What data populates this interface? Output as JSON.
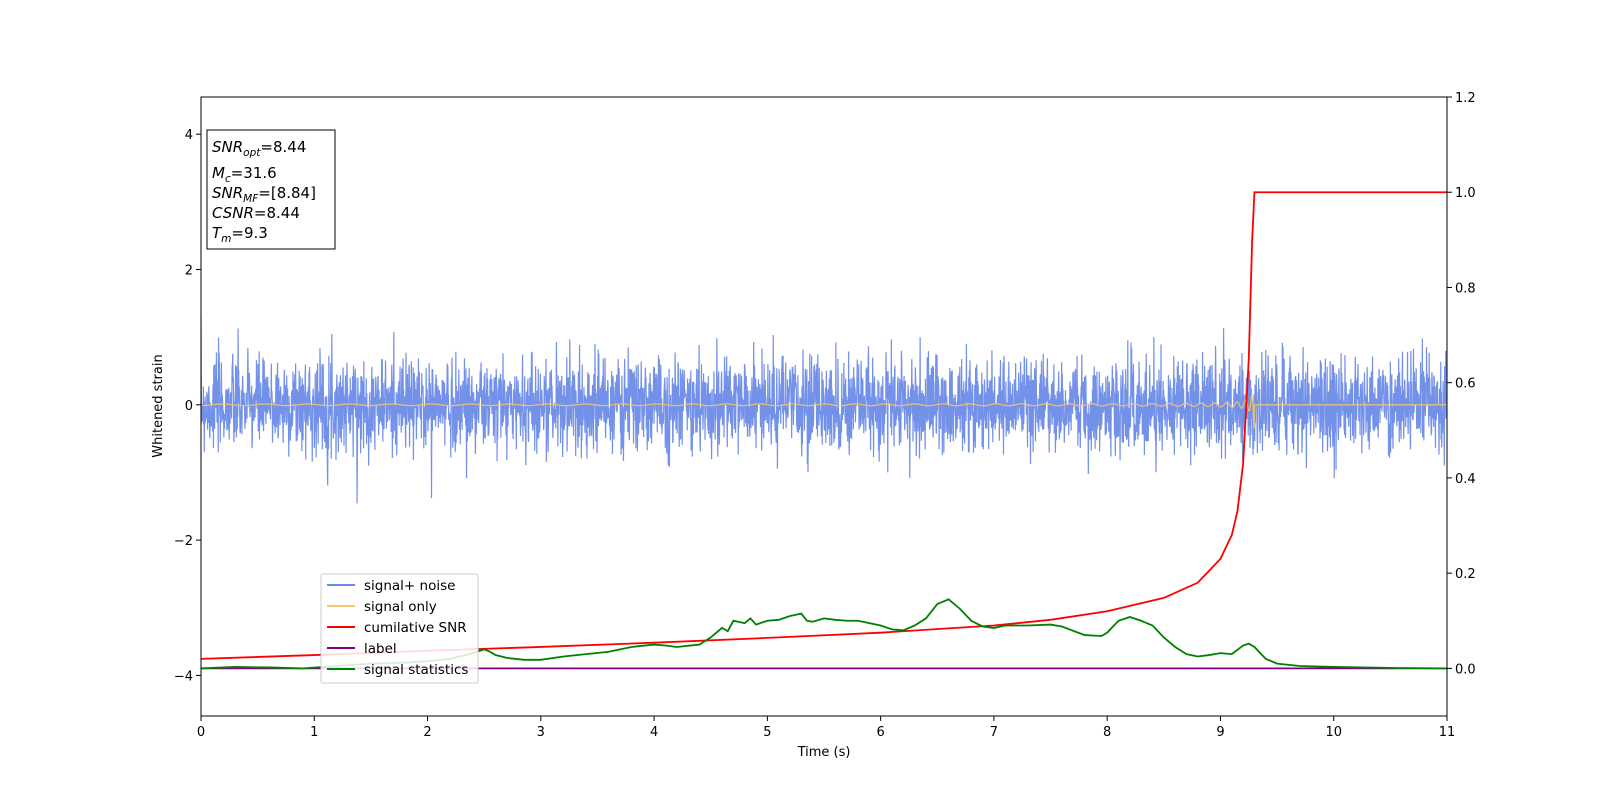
{
  "chart_data": {
    "type": "line",
    "xlabel": "Time (s)",
    "ylabel": "Whitened strain",
    "xlim": [
      0,
      11
    ],
    "ylim": [
      -4.6,
      4.55
    ],
    "y2lim": [
      -0.1,
      1.2
    ],
    "xticks": [
      0,
      1,
      2,
      3,
      4,
      5,
      6,
      7,
      8,
      9,
      10,
      11
    ],
    "yticks": [
      -4,
      -2,
      0,
      2,
      4
    ],
    "y2ticks": [
      0.0,
      0.2,
      0.4,
      0.6,
      0.8,
      1.0,
      1.2
    ],
    "xtick_labels": [
      "0",
      "1",
      "2",
      "3",
      "4",
      "5",
      "6",
      "7",
      "8",
      "9",
      "10",
      "11"
    ],
    "ytick_labels": [
      "−4",
      "−2",
      "0",
      "2",
      "4"
    ],
    "y2tick_labels": [
      "0.0",
      "0.2",
      "0.4",
      "0.6",
      "0.8",
      "1.0",
      "1.2"
    ],
    "legend_position": "lower-left",
    "grid": false,
    "info_box": {
      "snr_opt": {
        "base": "SNR",
        "sub": "opt",
        "value": "=8.44"
      },
      "mc": {
        "base": "M",
        "sub": "c",
        "value": "=31.6"
      },
      "snr_mf": {
        "base": "SNR",
        "sub": "MF",
        "value": "=[8.84]"
      },
      "csnr": {
        "base": "CSNR",
        "value": "=8.44"
      },
      "tm": {
        "base": "T",
        "sub": "m",
        "value": "=9.3"
      }
    },
    "series": [
      {
        "name": "signal+ noise",
        "axis": "left",
        "color": "#6b8be8",
        "kind": "noise",
        "mean": 0.0,
        "typical_amplitude": 0.55,
        "peak_amplitude": 1.6
      },
      {
        "name": "signal only",
        "axis": "left",
        "color": "#f5c86a",
        "kind": "chirp",
        "merger_time": 9.3,
        "peak_amplitude": 0.85
      },
      {
        "name": "cumilative SNR",
        "axis": "right",
        "color": "#ff0000",
        "x": [
          0,
          1,
          2,
          3,
          4,
          5,
          6,
          7,
          7.5,
          8,
          8.5,
          8.8,
          9.0,
          9.1,
          9.15,
          9.2,
          9.25,
          9.28,
          9.3,
          10,
          11
        ],
        "y": [
          0.02,
          0.028,
          0.037,
          0.045,
          0.054,
          0.064,
          0.075,
          0.09,
          0.102,
          0.12,
          0.148,
          0.18,
          0.23,
          0.28,
          0.33,
          0.43,
          0.65,
          0.9,
          1.0,
          1.0,
          1.0
        ]
      },
      {
        "name": "label",
        "axis": "right",
        "color": "#800080",
        "x": [
          0,
          11
        ],
        "y": [
          0.0,
          0.0
        ]
      },
      {
        "name": "signal statistics",
        "axis": "right",
        "color": "#008000",
        "x": [
          0.0,
          0.3,
          0.6,
          0.9,
          1.2,
          1.5,
          1.8,
          2.0,
          2.2,
          2.4,
          2.5,
          2.55,
          2.6,
          2.7,
          2.85,
          3.0,
          3.2,
          3.4,
          3.6,
          3.8,
          4.0,
          4.1,
          4.2,
          4.4,
          4.5,
          4.6,
          4.65,
          4.7,
          4.8,
          4.85,
          4.9,
          5.0,
          5.1,
          5.2,
          5.3,
          5.35,
          5.4,
          5.5,
          5.6,
          5.7,
          5.8,
          5.9,
          6.0,
          6.1,
          6.2,
          6.3,
          6.4,
          6.5,
          6.6,
          6.7,
          6.8,
          6.9,
          7.0,
          7.1,
          7.3,
          7.5,
          7.6,
          7.8,
          7.95,
          8.0,
          8.1,
          8.2,
          8.3,
          8.4,
          8.5,
          8.6,
          8.7,
          8.8,
          8.9,
          9.0,
          9.1,
          9.2,
          9.25,
          9.3,
          9.4,
          9.5,
          9.7,
          10.0,
          10.5,
          11.0
        ],
        "y": [
          0.0,
          0.003,
          0.002,
          0.0,
          0.005,
          0.01,
          0.012,
          0.015,
          0.02,
          0.032,
          0.04,
          0.035,
          0.028,
          0.022,
          0.018,
          0.018,
          0.025,
          0.03,
          0.035,
          0.045,
          0.05,
          0.048,
          0.045,
          0.05,
          0.065,
          0.085,
          0.078,
          0.1,
          0.095,
          0.105,
          0.092,
          0.1,
          0.102,
          0.11,
          0.115,
          0.1,
          0.098,
          0.105,
          0.102,
          0.1,
          0.1,
          0.095,
          0.09,
          0.082,
          0.08,
          0.09,
          0.105,
          0.135,
          0.145,
          0.125,
          0.1,
          0.088,
          0.085,
          0.09,
          0.09,
          0.092,
          0.088,
          0.07,
          0.068,
          0.075,
          0.1,
          0.108,
          0.1,
          0.09,
          0.065,
          0.045,
          0.03,
          0.025,
          0.028,
          0.032,
          0.03,
          0.048,
          0.052,
          0.045,
          0.02,
          0.01,
          0.005,
          0.003,
          0.001,
          0.0
        ]
      }
    ]
  }
}
